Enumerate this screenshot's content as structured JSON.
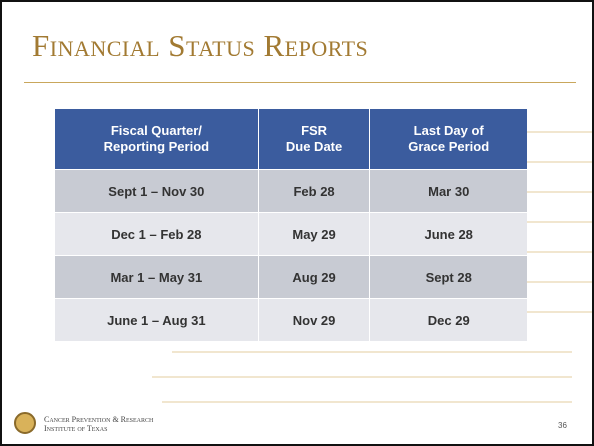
{
  "title": "Financial Status Reports",
  "table": {
    "header": [
      [
        "Fiscal Quarter/",
        "Reporting Period"
      ],
      [
        "FSR",
        "Due Date"
      ],
      [
        "Last Day of",
        "Grace Period"
      ]
    ],
    "rows": [
      [
        "Sept 1 – Nov 30",
        "Feb 28",
        "Mar 30"
      ],
      [
        "Dec 1 – Feb 28",
        "May 29",
        "June 28"
      ],
      [
        "Mar 1 – May 31",
        "Aug 29",
        "Sept 28"
      ],
      [
        "June 1 – Aug 31",
        "Nov 29",
        "Dec 29"
      ]
    ]
  },
  "footer": {
    "organization": [
      "Cancer Prevention & Research",
      "Institute of Texas"
    ],
    "page_number": "36"
  }
}
